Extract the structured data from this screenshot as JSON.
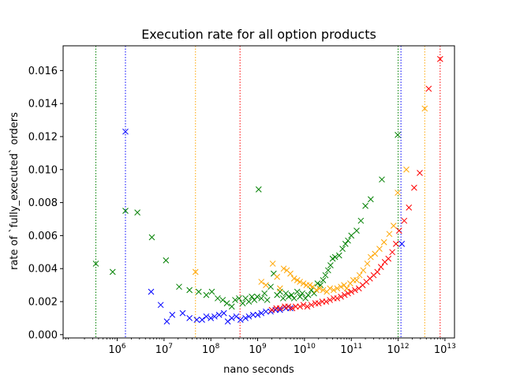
{
  "chart_data": {
    "type": "scatter",
    "title": "Execution rate for all option products",
    "xlabel": "nano seconds",
    "ylabel": "rate of `fully_executed` orders",
    "xscale": "log",
    "xlim": [
      70000.0,
      16000000000000.0
    ],
    "ylim": [
      -0.0002,
      0.0175
    ],
    "x_ticks": [
      {
        "value": 1000000.0,
        "base": "10",
        "exp": "6"
      },
      {
        "value": 10000000.0,
        "base": "10",
        "exp": "7"
      },
      {
        "value": 100000000.0,
        "base": "10",
        "exp": "8"
      },
      {
        "value": 1000000000.0,
        "base": "10",
        "exp": "9"
      },
      {
        "value": 10000000000.0,
        "base": "10",
        "exp": "10"
      },
      {
        "value": 100000000000.0,
        "base": "10",
        "exp": "11"
      },
      {
        "value": 1000000000000.0,
        "base": "10",
        "exp": "12"
      },
      {
        "value": 10000000000000.0,
        "base": "10",
        "exp": "13"
      }
    ],
    "y_ticks": [
      {
        "value": 0.0,
        "label": "0.000"
      },
      {
        "value": 0.002,
        "label": "0.002"
      },
      {
        "value": 0.004,
        "label": "0.004"
      },
      {
        "value": 0.006,
        "label": "0.006"
      },
      {
        "value": 0.008,
        "label": "0.008"
      },
      {
        "value": 0.01,
        "label": "0.010"
      },
      {
        "value": 0.012,
        "label": "0.012"
      },
      {
        "value": 0.014,
        "label": "0.014"
      },
      {
        "value": 0.016,
        "label": "0.016"
      }
    ],
    "marker": "x",
    "grid": false,
    "legend": "none",
    "vlines": [
      {
        "x": 350000.0,
        "color": "#008000"
      },
      {
        "x": 1500000.0,
        "color": "#0000ff"
      },
      {
        "x": 47000000.0,
        "color": "#ffa500"
      },
      {
        "x": 420000000.0,
        "color": "#ff0000"
      },
      {
        "x": 1000000000000.0,
        "color": "#008000"
      },
      {
        "x": 1150000000000.0,
        "color": "#0000ff"
      },
      {
        "x": 3700000000000.0,
        "color": "#ffa500"
      },
      {
        "x": 7900000000000.0,
        "color": "#ff0000"
      }
    ],
    "series": [
      {
        "color": "#008000",
        "points": [
          [
            350000.0,
            0.0043
          ],
          [
            800000.0,
            0.0038
          ],
          [
            1500000.0,
            0.0075
          ],
          [
            2700000.0,
            0.0074
          ],
          [
            5500000.0,
            0.0059
          ],
          [
            11000000.0,
            0.0045
          ],
          [
            21000000.0,
            0.0029
          ],
          [
            35000000.0,
            0.0027
          ],
          [
            55000000.0,
            0.0026
          ],
          [
            80000000.0,
            0.0024
          ],
          [
            105000000.0,
            0.0026
          ],
          [
            140000000.0,
            0.0022
          ],
          [
            180000000.0,
            0.0021
          ],
          [
            220000000.0,
            0.0019
          ],
          [
            280000000.0,
            0.0017
          ],
          [
            330000000.0,
            0.0021
          ],
          [
            400000000.0,
            0.0022
          ],
          [
            480000000.0,
            0.0019
          ],
          [
            550000000.0,
            0.0022
          ],
          [
            650000000.0,
            0.002
          ],
          [
            750000000.0,
            0.0023
          ],
          [
            850000000.0,
            0.0021
          ],
          [
            980000000.0,
            0.0023
          ],
          [
            1050000000.0,
            0.0088
          ],
          [
            1200000000.0,
            0.0022
          ],
          [
            1400000000.0,
            0.0025
          ],
          [
            1600000000.0,
            0.0021
          ],
          [
            1900000000.0,
            0.0029
          ],
          [
            2200000000.0,
            0.0037
          ],
          [
            2600000000.0,
            0.0024
          ],
          [
            3000000000.0,
            0.0026
          ],
          [
            3500000000.0,
            0.0022
          ],
          [
            4000000000.0,
            0.0025
          ],
          [
            4600000000.0,
            0.0023
          ],
          [
            5300000000.0,
            0.0024
          ],
          [
            6000000000.0,
            0.0022
          ],
          [
            7000000000.0,
            0.0026
          ],
          [
            8000000000.0,
            0.0023
          ],
          [
            9000000000.0,
            0.0025
          ],
          [
            10500000000.0,
            0.0022
          ],
          [
            12000000000.0,
            0.0024
          ],
          [
            14000000000.0,
            0.0027
          ],
          [
            16000000000.0,
            0.0025
          ],
          [
            19000000000.0,
            0.0031
          ],
          [
            22000000000.0,
            0.003
          ],
          [
            25000000000.0,
            0.0033
          ],
          [
            28000000000.0,
            0.0036
          ],
          [
            32000000000.0,
            0.0039
          ],
          [
            36000000000.0,
            0.0042
          ],
          [
            40000000000.0,
            0.0046
          ],
          [
            45000000000.0,
            0.0047
          ],
          [
            55000000000.0,
            0.0048
          ],
          [
            65000000000.0,
            0.0052
          ],
          [
            75000000000.0,
            0.0055
          ],
          [
            85000000000.0,
            0.0057
          ],
          [
            100000000000.0,
            0.006
          ],
          [
            130000000000.0,
            0.0063
          ],
          [
            160000000000.0,
            0.0069
          ],
          [
            200000000000.0,
            0.0078
          ],
          [
            260000000000.0,
            0.0082
          ],
          [
            450000000000.0,
            0.0094
          ],
          [
            980000000000.0,
            0.0121
          ]
        ]
      },
      {
        "color": "#0000ff",
        "points": [
          [
            1500000.0,
            0.0123
          ],
          [
            5300000.0,
            0.0026
          ],
          [
            8500000.0,
            0.0018
          ],
          [
            11500000.0,
            0.0008
          ],
          [
            15000000.0,
            0.0012
          ],
          [
            25000000.0,
            0.0013
          ],
          [
            35000000.0,
            0.001
          ],
          [
            50000000.0,
            0.0009
          ],
          [
            65000000.0,
            0.0009
          ],
          [
            80000000.0,
            0.0011
          ],
          [
            100000000.0,
            0.001
          ],
          [
            120000000.0,
            0.0011
          ],
          [
            150000000.0,
            0.0012
          ],
          [
            190000000.0,
            0.0013
          ],
          [
            230000000.0,
            0.0008
          ],
          [
            280000000.0,
            0.001
          ],
          [
            350000000.0,
            0.0011
          ],
          [
            430000000.0,
            0.0009
          ],
          [
            550000000.0,
            0.001
          ],
          [
            650000000.0,
            0.0011
          ],
          [
            800000000.0,
            0.0012
          ],
          [
            1000000000.0,
            0.0012
          ],
          [
            1200000000.0,
            0.0013
          ],
          [
            1500000000.0,
            0.0014
          ],
          [
            1900000000.0,
            0.0014
          ],
          [
            2400000000.0,
            0.0015
          ],
          [
            3000000000.0,
            0.0015
          ],
          [
            4000000000.0,
            0.0016
          ],
          [
            5000000000.0,
            0.0016
          ],
          [
            1200000000000.0,
            0.0055
          ]
        ]
      },
      {
        "color": "#ffa500",
        "points": [
          [
            47000000.0,
            0.0038
          ],
          [
            1200000000.0,
            0.0032
          ],
          [
            1500000000.0,
            0.003
          ],
          [
            2100000000.0,
            0.0043
          ],
          [
            2600000000.0,
            0.0035
          ],
          [
            3000000000.0,
            0.0028
          ],
          [
            3600000000.0,
            0.004
          ],
          [
            4200000000.0,
            0.0039
          ],
          [
            5000000000.0,
            0.0037
          ],
          [
            6000000000.0,
            0.0034
          ],
          [
            7000000000.0,
            0.0033
          ],
          [
            8000000000.0,
            0.0032
          ],
          [
            9500000000.0,
            0.0031
          ],
          [
            11000000000.0,
            0.003
          ],
          [
            13000000000.0,
            0.003
          ],
          [
            15000000000.0,
            0.0029
          ],
          [
            18000000000.0,
            0.0027
          ],
          [
            21000000000.0,
            0.0028
          ],
          [
            25000000000.0,
            0.0027
          ],
          [
            30000000000.0,
            0.0026
          ],
          [
            35000000000.0,
            0.0028
          ],
          [
            42000000000.0,
            0.0027
          ],
          [
            50000000000.0,
            0.0028
          ],
          [
            60000000000.0,
            0.0029
          ],
          [
            70000000000.0,
            0.003
          ],
          [
            80000000000.0,
            0.0028
          ],
          [
            95000000000.0,
            0.0031
          ],
          [
            110000000000.0,
            0.0033
          ],
          [
            130000000000.0,
            0.0033
          ],
          [
            150000000000.0,
            0.0036
          ],
          [
            180000000000.0,
            0.0039
          ],
          [
            220000000000.0,
            0.0043
          ],
          [
            260000000000.0,
            0.0047
          ],
          [
            320000000000.0,
            0.0049
          ],
          [
            400000000000.0,
            0.0052
          ],
          [
            500000000000.0,
            0.0056
          ],
          [
            650000000000.0,
            0.0061
          ],
          [
            800000000000.0,
            0.0066
          ],
          [
            980000000000.0,
            0.0086
          ],
          [
            1500000000000.0,
            0.01
          ],
          [
            3700000000000.0,
            0.0137
          ]
        ]
      },
      {
        "color": "#ff0000",
        "points": [
          [
            2000000000.0,
            0.0015
          ],
          [
            2500000000.0,
            0.0016
          ],
          [
            3000000000.0,
            0.0016
          ],
          [
            3800000000.0,
            0.0017
          ],
          [
            4500000000.0,
            0.0017
          ],
          [
            5500000000.0,
            0.0016
          ],
          [
            6500000000.0,
            0.0017
          ],
          [
            8000000000.0,
            0.0017
          ],
          [
            9500000000.0,
            0.0018
          ],
          [
            11500000000.0,
            0.0017
          ],
          [
            14000000000.0,
            0.0018
          ],
          [
            17000000000.0,
            0.0019
          ],
          [
            20000000000.0,
            0.0019
          ],
          [
            24000000000.0,
            0.002
          ],
          [
            29000000000.0,
            0.002
          ],
          [
            35000000000.0,
            0.0021
          ],
          [
            42000000000.0,
            0.0022
          ],
          [
            50000000000.0,
            0.0022
          ],
          [
            60000000000.0,
            0.0023
          ],
          [
            72000000000.0,
            0.0024
          ],
          [
            85000000000.0,
            0.0025
          ],
          [
            100000000000.0,
            0.0026
          ],
          [
            120000000000.0,
            0.0027
          ],
          [
            145000000000.0,
            0.0028
          ],
          [
            175000000000.0,
            0.003
          ],
          [
            210000000000.0,
            0.0032
          ],
          [
            250000000000.0,
            0.0034
          ],
          [
            300000000000.0,
            0.0036
          ],
          [
            360000000000.0,
            0.0038
          ],
          [
            430000000000.0,
            0.0041
          ],
          [
            520000000000.0,
            0.0044
          ],
          [
            620000000000.0,
            0.0046
          ],
          [
            750000000000.0,
            0.005
          ],
          [
            900000000000.0,
            0.0055
          ],
          [
            1050000000000.0,
            0.0063
          ],
          [
            1350000000000.0,
            0.0069
          ],
          [
            1700000000000.0,
            0.0077
          ],
          [
            2200000000000.0,
            0.0089
          ],
          [
            2900000000000.0,
            0.0098
          ],
          [
            4500000000000.0,
            0.0149
          ],
          [
            7900000000000.0,
            0.0167
          ]
        ]
      }
    ]
  }
}
